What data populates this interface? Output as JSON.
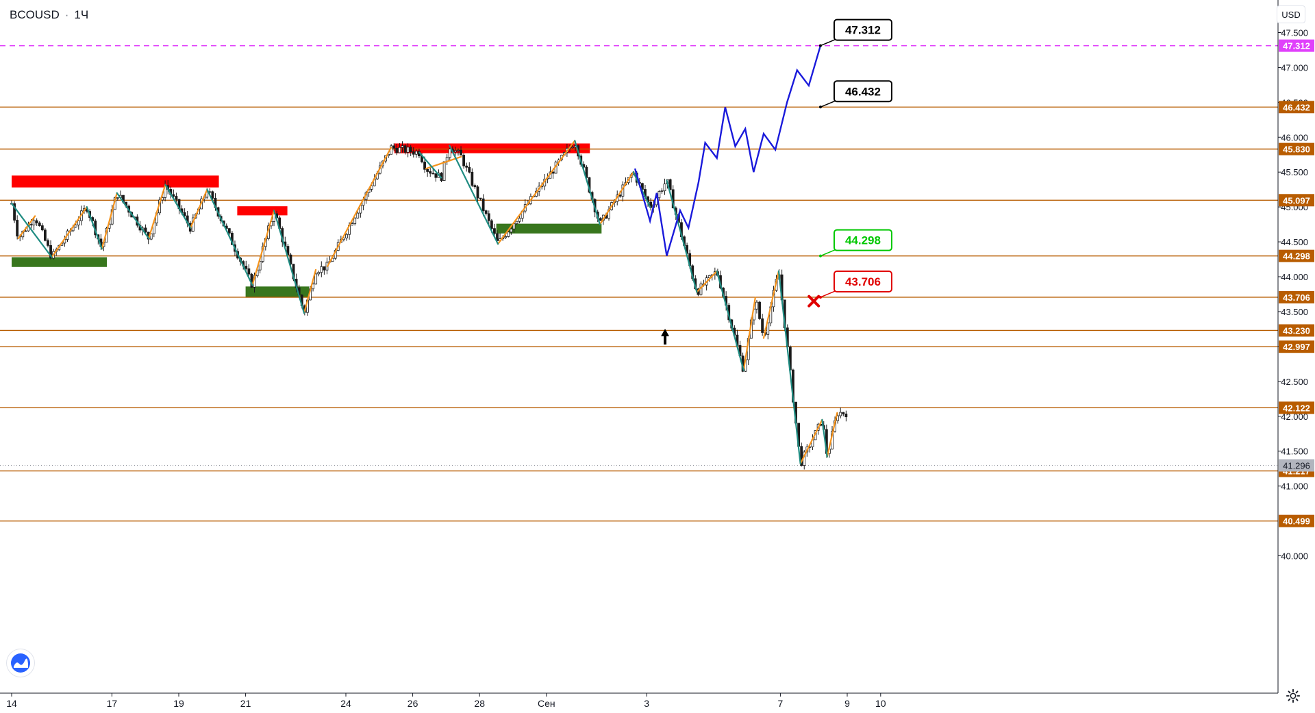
{
  "header": {
    "symbol": "BCOUSD",
    "separator": "·",
    "interval": "1Ч"
  },
  "currency_label": "USD",
  "chart_data": {
    "type": "line",
    "symbol": "BCOUSD",
    "interval": "1Ч",
    "ylim": [
      40.0,
      47.7
    ],
    "y_ticks": [
      47.5,
      47.0,
      46.5,
      46.0,
      45.5,
      45.0,
      44.5,
      44.0,
      43.5,
      43.0,
      42.5,
      42.0,
      41.5,
      41.0,
      40.0
    ],
    "y_tick_labels": [
      "47.500",
      "47.000",
      "46.500",
      "46.000",
      "45.500",
      "45.000",
      "44.500",
      "44.000",
      "43.500",
      "43.000",
      "42.500",
      "42.000",
      "41.500",
      "41.000",
      "40.000"
    ],
    "x_tick_labels": [
      "14",
      "17",
      "19",
      "21",
      "24",
      "26",
      "28",
      "Сен",
      "3",
      "7",
      "9",
      "10"
    ],
    "x_ticks": [
      0,
      3,
      5,
      7,
      10,
      12,
      14,
      16,
      19,
      23,
      25,
      26
    ],
    "x_range": [
      0,
      29
    ],
    "current_price": {
      "value": 41.296,
      "label": "41.296"
    },
    "levels": [
      {
        "value": 47.312,
        "label": "47.312",
        "color": "#e040fb",
        "style": "dashed"
      },
      {
        "value": 46.432,
        "label": "46.432",
        "color": "#b85c00",
        "style": "solid"
      },
      {
        "value": 45.83,
        "label": "45.830",
        "color": "#b85c00",
        "style": "solid"
      },
      {
        "value": 45.097,
        "label": "45.097",
        "color": "#b85c00",
        "style": "solid"
      },
      {
        "value": 44.298,
        "label": "44.298",
        "color": "#b85c00",
        "style": "solid"
      },
      {
        "value": 43.706,
        "label": "43.706",
        "color": "#b85c00",
        "style": "solid"
      },
      {
        "value": 43.23,
        "label": "43.230",
        "color": "#b85c00",
        "style": "solid"
      },
      {
        "value": 42.997,
        "label": "42.997",
        "color": "#b85c00",
        "style": "solid"
      },
      {
        "value": 42.122,
        "label": "42.122",
        "color": "#b85c00",
        "style": "solid"
      },
      {
        "value": 41.217,
        "label": "41.217",
        "color": "#b85c00",
        "style": "solid"
      },
      {
        "value": 40.499,
        "label": "40.499",
        "color": "#b85c00",
        "style": "solid"
      }
    ],
    "zones": [
      {
        "type": "resistance",
        "color": "#ff0000",
        "x0": 0.0,
        "x1": 6.2,
        "y0": 45.28,
        "y1": 45.45
      },
      {
        "type": "support",
        "color": "#38761d",
        "x0": 0.0,
        "x1": 2.85,
        "y0": 44.14,
        "y1": 44.28
      },
      {
        "type": "resistance",
        "color": "#ff0000",
        "x0": 6.75,
        "x1": 8.25,
        "y0": 44.88,
        "y1": 45.01
      },
      {
        "type": "support",
        "color": "#38761d",
        "x0": 7.0,
        "x1": 8.9,
        "y0": 43.7,
        "y1": 43.86
      },
      {
        "type": "resistance",
        "color": "#ff0000",
        "x0": 11.45,
        "x1": 17.3,
        "y0": 45.77,
        "y1": 45.91
      },
      {
        "type": "support",
        "color": "#38761d",
        "x0": 14.5,
        "x1": 17.65,
        "y0": 44.62,
        "y1": 44.76
      }
    ],
    "callouts": [
      {
        "label": "47.312",
        "value": 47.312,
        "color": "#000000"
      },
      {
        "label": "46.432",
        "value": 46.432,
        "color": "#000000"
      },
      {
        "label": "44.298",
        "value": 44.298,
        "color": "#00c800"
      },
      {
        "label": "43.706",
        "value": 43.706,
        "color": "#e00000"
      }
    ],
    "forecast_path": {
      "color": "#1a1adb",
      "x": [
        18.65,
        19.1,
        19.3,
        19.6,
        20.0,
        20.25,
        20.55,
        20.75,
        21.1,
        21.35,
        21.65,
        21.95,
        22.2,
        22.5,
        22.85,
        23.2,
        23.5,
        23.85,
        24.2
      ],
      "y": [
        45.55,
        44.8,
        45.2,
        44.3,
        44.95,
        44.7,
        45.35,
        45.92,
        45.7,
        46.43,
        45.87,
        46.12,
        45.5,
        46.05,
        45.82,
        46.5,
        46.96,
        46.74,
        47.312
      ]
    },
    "zigzag_up": {
      "color": "#f5931c",
      "segments": [
        [
          [
            0.2,
            44.55
          ],
          [
            0.7,
            44.87
          ]
        ],
        [
          [
            1.2,
            44.28
          ],
          [
            2.25,
            45.0
          ]
        ],
        [
          [
            2.7,
            44.4
          ],
          [
            3.15,
            45.2
          ]
        ],
        [
          [
            4.1,
            44.55
          ],
          [
            4.6,
            45.32
          ]
        ],
        [
          [
            5.35,
            44.7
          ],
          [
            5.85,
            45.25
          ]
        ],
        [
          [
            7.2,
            43.88
          ],
          [
            7.85,
            44.95
          ]
        ],
        [
          [
            8.75,
            43.48
          ],
          [
            9.1,
            44.1
          ]
        ],
        [
          [
            9.45,
            44.15
          ],
          [
            11.35,
            45.85
          ]
        ],
        [
          [
            12.4,
            45.55
          ],
          [
            13.45,
            45.72
          ]
        ],
        [
          [
            14.55,
            44.47
          ],
          [
            16.85,
            45.95
          ]
        ],
        [
          [
            17.6,
            44.75
          ],
          [
            18.6,
            45.5
          ]
        ],
        [
          [
            20.5,
            43.78
          ],
          [
            21.1,
            44.08
          ]
        ],
        [
          [
            21.9,
            42.66
          ],
          [
            22.25,
            43.7
          ]
        ],
        [
          [
            22.5,
            43.12
          ],
          [
            22.95,
            44.08
          ]
        ],
        [
          [
            23.6,
            41.32
          ],
          [
            24.25,
            41.95
          ]
        ],
        [
          [
            24.4,
            41.42
          ],
          [
            24.7,
            42.05
          ]
        ]
      ]
    },
    "zigzag_down": {
      "color": "#1f8c82",
      "segments": [
        [
          [
            0.0,
            45.05
          ],
          [
            1.2,
            44.28
          ]
        ],
        [
          [
            2.25,
            45.0
          ],
          [
            2.7,
            44.4
          ]
        ],
        [
          [
            3.15,
            45.2
          ],
          [
            4.1,
            44.55
          ]
        ],
        [
          [
            4.6,
            45.32
          ],
          [
            5.35,
            44.7
          ]
        ],
        [
          [
            5.85,
            45.25
          ],
          [
            7.2,
            43.88
          ]
        ],
        [
          [
            7.85,
            44.95
          ],
          [
            8.75,
            43.48
          ]
        ],
        [
          [
            12.2,
            45.78
          ],
          [
            12.85,
            45.42
          ]
        ],
        [
          [
            13.1,
            45.88
          ],
          [
            14.55,
            44.47
          ]
        ],
        [
          [
            16.85,
            45.95
          ],
          [
            17.6,
            44.75
          ]
        ],
        [
          [
            18.6,
            45.5
          ],
          [
            19.1,
            45.0
          ]
        ],
        [
          [
            19.6,
            45.38
          ],
          [
            20.5,
            43.78
          ]
        ],
        [
          [
            21.1,
            44.08
          ],
          [
            21.9,
            42.66
          ]
        ],
        [
          [
            22.95,
            44.08
          ],
          [
            23.6,
            41.32
          ]
        ],
        [
          [
            24.25,
            41.95
          ],
          [
            24.4,
            41.42
          ]
        ]
      ]
    },
    "arrow_marker": {
      "x": 19.55,
      "direction": "up",
      "color": "#000000"
    },
    "cross_marker": {
      "x": 24.0,
      "value": 43.65,
      "color": "#e00000"
    },
    "grid": false,
    "legend": "none"
  },
  "icons": {
    "logo": "tradingview-logo-icon",
    "settings": "gear-icon"
  },
  "colors": {
    "level": "#b85c00",
    "target": "#e040fb",
    "current": "#b2b5be",
    "axis_text": "#131722"
  }
}
